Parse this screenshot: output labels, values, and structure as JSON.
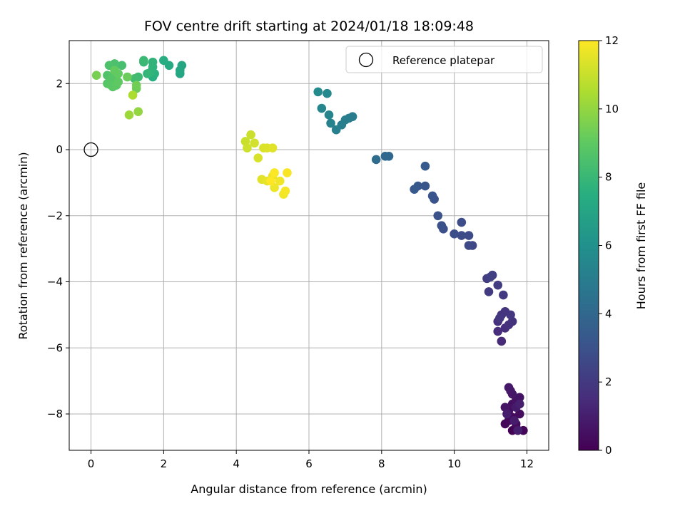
{
  "chart_data": {
    "type": "scatter",
    "title": "FOV centre drift starting at 2024/01/18 18:09:48",
    "xlabel": "Angular distance from reference (arcmin)",
    "ylabel": "Rotation from reference (arcmin)",
    "xlim": [
      -0.6,
      12.6
    ],
    "ylim": [
      -9.1,
      3.3
    ],
    "xticks": [
      0,
      2,
      4,
      6,
      8,
      10,
      12
    ],
    "yticks": [
      -8,
      -6,
      -4,
      -2,
      0,
      2
    ],
    "grid": true,
    "legend": {
      "position": "top-right",
      "entries": [
        {
          "label": "Reference platepar",
          "marker": "open-circle"
        }
      ]
    },
    "reference_point": {
      "x": 0,
      "y": 0
    },
    "colorbar": {
      "label": "Hours from first FF file",
      "range": [
        0,
        12
      ],
      "ticks": [
        0,
        2,
        4,
        6,
        8,
        10,
        12
      ],
      "colormap": "viridis"
    },
    "points": [
      {
        "x": 11.6,
        "y": -8.5,
        "c": 0.05
      },
      {
        "x": 11.7,
        "y": -8.4,
        "c": 0.1
      },
      {
        "x": 11.9,
        "y": -8.5,
        "c": 0.15
      },
      {
        "x": 11.4,
        "y": -8.3,
        "c": 0.2
      },
      {
        "x": 11.5,
        "y": -8.2,
        "c": 0.25
      },
      {
        "x": 11.6,
        "y": -8.1,
        "c": 0.3
      },
      {
        "x": 11.7,
        "y": -8.3,
        "c": 0.35
      },
      {
        "x": 11.8,
        "y": -8.0,
        "c": 0.4
      },
      {
        "x": 11.5,
        "y": -7.9,
        "c": 0.45
      },
      {
        "x": 11.6,
        "y": -7.7,
        "c": 0.5
      },
      {
        "x": 11.7,
        "y": -7.6,
        "c": 0.55
      },
      {
        "x": 11.8,
        "y": -7.5,
        "c": 0.6
      },
      {
        "x": 11.4,
        "y": -7.8,
        "c": 0.65
      },
      {
        "x": 11.6,
        "y": -7.4,
        "c": 0.7
      },
      {
        "x": 11.55,
        "y": -7.3,
        "c": 0.75
      },
      {
        "x": 11.5,
        "y": -7.2,
        "c": 0.8
      },
      {
        "x": 11.7,
        "y": -7.8,
        "c": 0.85
      },
      {
        "x": 11.65,
        "y": -8.2,
        "c": 0.9
      },
      {
        "x": 11.45,
        "y": -8.0,
        "c": 0.95
      },
      {
        "x": 11.75,
        "y": -8.5,
        "c": 1.0
      },
      {
        "x": 11.8,
        "y": -7.7,
        "c": 1.05
      },
      {
        "x": 11.3,
        "y": -5.8,
        "c": 1.4
      },
      {
        "x": 11.2,
        "y": -5.5,
        "c": 1.5
      },
      {
        "x": 11.4,
        "y": -5.4,
        "c": 1.55
      },
      {
        "x": 11.2,
        "y": -5.2,
        "c": 1.6
      },
      {
        "x": 11.5,
        "y": -5.3,
        "c": 1.65
      },
      {
        "x": 11.6,
        "y": -5.2,
        "c": 1.7
      },
      {
        "x": 11.3,
        "y": -5.0,
        "c": 1.75
      },
      {
        "x": 11.4,
        "y": -4.9,
        "c": 1.8
      },
      {
        "x": 11.55,
        "y": -5.0,
        "c": 1.85
      },
      {
        "x": 11.25,
        "y": -5.1,
        "c": 1.9
      },
      {
        "x": 11.35,
        "y": -4.4,
        "c": 2.0
      },
      {
        "x": 10.95,
        "y": -4.3,
        "c": 2.05
      },
      {
        "x": 11.2,
        "y": -4.1,
        "c": 2.1
      },
      {
        "x": 10.9,
        "y": -3.9,
        "c": 2.15
      },
      {
        "x": 11.05,
        "y": -3.8,
        "c": 2.2
      },
      {
        "x": 11.0,
        "y": -3.85,
        "c": 2.25
      },
      {
        "x": 10.5,
        "y": -2.9,
        "c": 2.6
      },
      {
        "x": 10.4,
        "y": -2.9,
        "c": 2.65
      },
      {
        "x": 10.4,
        "y": -2.6,
        "c": 2.7
      },
      {
        "x": 10.2,
        "y": -2.6,
        "c": 2.75
      },
      {
        "x": 10.2,
        "y": -2.2,
        "c": 2.8
      },
      {
        "x": 10.0,
        "y": -2.55,
        "c": 2.85
      },
      {
        "x": 9.7,
        "y": -2.4,
        "c": 2.9
      },
      {
        "x": 9.65,
        "y": -2.3,
        "c": 2.95
      },
      {
        "x": 9.55,
        "y": -2.0,
        "c": 3.0
      },
      {
        "x": 9.45,
        "y": -1.5,
        "c": 3.1
      },
      {
        "x": 9.4,
        "y": -1.4,
        "c": 3.15
      },
      {
        "x": 9.2,
        "y": -1.1,
        "c": 3.2
      },
      {
        "x": 9.0,
        "y": -1.1,
        "c": 3.3
      },
      {
        "x": 8.9,
        "y": -1.2,
        "c": 3.35
      },
      {
        "x": 9.2,
        "y": -0.5,
        "c": 3.4
      },
      {
        "x": 8.2,
        "y": -0.2,
        "c": 4.0
      },
      {
        "x": 8.1,
        "y": -0.2,
        "c": 4.1
      },
      {
        "x": 7.85,
        "y": -0.3,
        "c": 4.2
      },
      {
        "x": 7.2,
        "y": 1.0,
        "c": 5.0
      },
      {
        "x": 7.1,
        "y": 0.95,
        "c": 5.05
      },
      {
        "x": 7.0,
        "y": 0.9,
        "c": 5.1
      },
      {
        "x": 6.9,
        "y": 0.75,
        "c": 5.15
      },
      {
        "x": 6.75,
        "y": 0.6,
        "c": 5.2
      },
      {
        "x": 6.6,
        "y": 0.8,
        "c": 5.3
      },
      {
        "x": 6.55,
        "y": 1.05,
        "c": 5.35
      },
      {
        "x": 6.35,
        "y": 1.25,
        "c": 5.45
      },
      {
        "x": 6.5,
        "y": 1.7,
        "c": 5.6
      },
      {
        "x": 6.25,
        "y": 1.75,
        "c": 5.7
      },
      {
        "x": 2.45,
        "y": 2.3,
        "c": 7.0
      },
      {
        "x": 2.5,
        "y": 2.55,
        "c": 7.1
      },
      {
        "x": 2.45,
        "y": 2.4,
        "c": 7.15
      },
      {
        "x": 2.15,
        "y": 2.55,
        "c": 7.3
      },
      {
        "x": 2.0,
        "y": 2.7,
        "c": 7.4
      },
      {
        "x": 1.7,
        "y": 2.2,
        "c": 7.5
      },
      {
        "x": 1.75,
        "y": 2.3,
        "c": 7.6
      },
      {
        "x": 1.65,
        "y": 2.35,
        "c": 7.7
      },
      {
        "x": 1.7,
        "y": 2.5,
        "c": 7.75
      },
      {
        "x": 1.7,
        "y": 2.65,
        "c": 7.8
      },
      {
        "x": 1.55,
        "y": 2.3,
        "c": 7.9
      },
      {
        "x": 1.45,
        "y": 2.65,
        "c": 8.0
      },
      {
        "x": 1.45,
        "y": 2.7,
        "c": 8.05
      },
      {
        "x": 1.3,
        "y": 2.2,
        "c": 8.15
      },
      {
        "x": 1.2,
        "y": 2.15,
        "c": 8.25
      },
      {
        "x": 0.85,
        "y": 2.55,
        "c": 8.4
      },
      {
        "x": 0.65,
        "y": 2.6,
        "c": 8.5
      },
      {
        "x": 0.5,
        "y": 2.55,
        "c": 8.55
      },
      {
        "x": 0.45,
        "y": 2.25,
        "c": 8.6
      },
      {
        "x": 0.55,
        "y": 2.1,
        "c": 8.7
      },
      {
        "x": 0.6,
        "y": 2.2,
        "c": 8.75
      },
      {
        "x": 0.45,
        "y": 2.0,
        "c": 8.8
      },
      {
        "x": 0.55,
        "y": 1.95,
        "c": 8.85
      },
      {
        "x": 0.6,
        "y": 1.9,
        "c": 8.9
      },
      {
        "x": 0.7,
        "y": 1.95,
        "c": 8.95
      },
      {
        "x": 0.75,
        "y": 2.05,
        "c": 9.0
      },
      {
        "x": 0.75,
        "y": 2.3,
        "c": 9.05
      },
      {
        "x": 0.65,
        "y": 2.4,
        "c": 9.1
      },
      {
        "x": 1.0,
        "y": 2.2,
        "c": 9.2
      },
      {
        "x": 1.25,
        "y": 1.85,
        "c": 9.3
      },
      {
        "x": 1.25,
        "y": 1.95,
        "c": 9.35
      },
      {
        "x": 0.15,
        "y": 2.25,
        "c": 9.5
      },
      {
        "x": 1.3,
        "y": 1.15,
        "c": 10.0
      },
      {
        "x": 1.05,
        "y": 1.05,
        "c": 10.2
      },
      {
        "x": 1.15,
        "y": 1.65,
        "c": 10.5
      },
      {
        "x": 4.25,
        "y": 0.25,
        "c": 11.0
      },
      {
        "x": 4.4,
        "y": 0.45,
        "c": 11.05
      },
      {
        "x": 4.3,
        "y": 0.05,
        "c": 11.1
      },
      {
        "x": 4.5,
        "y": 0.2,
        "c": 11.2
      },
      {
        "x": 4.6,
        "y": -0.25,
        "c": 11.3
      },
      {
        "x": 4.75,
        "y": 0.05,
        "c": 11.35
      },
      {
        "x": 4.85,
        "y": 0.05,
        "c": 11.4
      },
      {
        "x": 5.0,
        "y": 0.05,
        "c": 11.45
      },
      {
        "x": 4.7,
        "y": -0.9,
        "c": 11.5
      },
      {
        "x": 4.85,
        "y": -0.95,
        "c": 11.55
      },
      {
        "x": 5.0,
        "y": -0.8,
        "c": 11.6
      },
      {
        "x": 5.05,
        "y": -1.15,
        "c": 11.7
      },
      {
        "x": 5.2,
        "y": -0.95,
        "c": 11.75
      },
      {
        "x": 5.3,
        "y": -1.35,
        "c": 11.8
      },
      {
        "x": 5.35,
        "y": -1.25,
        "c": 11.85
      },
      {
        "x": 5.4,
        "y": -0.7,
        "c": 11.9
      },
      {
        "x": 5.05,
        "y": -0.7,
        "c": 11.95
      },
      {
        "x": 4.95,
        "y": -0.95,
        "c": 12.0
      }
    ]
  }
}
